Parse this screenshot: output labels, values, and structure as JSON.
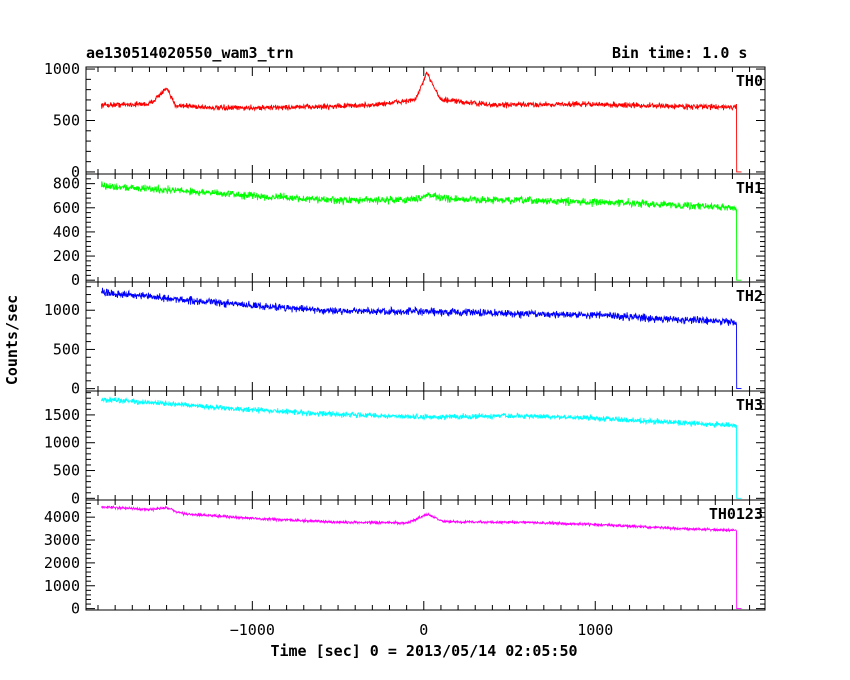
{
  "header": {
    "left": "ae130514020550_wam3_trn",
    "right": "Bin time: 1.0 s"
  },
  "chart_data": {
    "type": "line",
    "title": "ae130514020550_wam3_trn",
    "subtitle": "Bin time: 1.0 s",
    "xlabel": "Time [sec] 0 = 2013/05/14 02:05:50",
    "ylabel": "Counts/sec",
    "xlim": [
      -1970,
      1990
    ],
    "x_ticks": [
      -1000,
      0,
      1000
    ],
    "x_tick_labels": [
      "−1000",
      "0",
      "1000"
    ],
    "panels": [
      {
        "name": "TH0",
        "color": "#ff0000",
        "ylim": [
          -20,
          1020
        ],
        "y_ticks": [
          0,
          500,
          1000
        ],
        "y_tick_labels": [
          "0",
          "500",
          "1000"
        ],
        "noise": 22,
        "trend": [
          [
            -1880,
            650
          ],
          [
            -1600,
            660
          ],
          [
            -1500,
            810
          ],
          [
            -1450,
            650
          ],
          [
            -1200,
            620
          ],
          [
            -700,
            630
          ],
          [
            -300,
            650
          ],
          [
            -50,
            700
          ],
          [
            20,
            960
          ],
          [
            100,
            700
          ],
          [
            400,
            650
          ],
          [
            900,
            660
          ],
          [
            1400,
            640
          ],
          [
            1820,
            630
          ]
        ],
        "dropout_at": 1825
      },
      {
        "name": "TH1",
        "color": "#00ff00",
        "ylim": [
          -15,
          880
        ],
        "y_ticks": [
          0,
          200,
          400,
          600,
          800
        ],
        "y_tick_labels": [
          "0",
          "200",
          "400",
          "600",
          "800"
        ],
        "noise": 25,
        "trend": [
          [
            -1880,
            780
          ],
          [
            -1500,
            750
          ],
          [
            -1000,
            700
          ],
          [
            -500,
            660
          ],
          [
            -50,
            670
          ],
          [
            20,
            710
          ],
          [
            150,
            670
          ],
          [
            600,
            660
          ],
          [
            1200,
            640
          ],
          [
            1820,
            600
          ]
        ],
        "dropout_at": 1825
      },
      {
        "name": "TH2",
        "color": "#0000ff",
        "ylim": [
          -30,
          1360
        ],
        "y_ticks": [
          0,
          500,
          1000
        ],
        "y_tick_labels": [
          "0",
          "500",
          "1000"
        ],
        "noise": 40,
        "trend": [
          [
            -1880,
            1230
          ],
          [
            -1500,
            1150
          ],
          [
            -1000,
            1060
          ],
          [
            -500,
            990
          ],
          [
            0,
            980
          ],
          [
            500,
            960
          ],
          [
            1000,
            940
          ],
          [
            1500,
            880
          ],
          [
            1820,
            850
          ]
        ],
        "dropout_at": 1825
      },
      {
        "name": "TH3",
        "color": "#00ffff",
        "ylim": [
          -30,
          1930
        ],
        "y_ticks": [
          0,
          500,
          1000,
          1500
        ],
        "y_tick_labels": [
          "0",
          "500",
          "1000",
          "1500"
        ],
        "noise": 40,
        "trend": [
          [
            -1880,
            1780
          ],
          [
            -1500,
            1700
          ],
          [
            -1000,
            1590
          ],
          [
            -500,
            1510
          ],
          [
            0,
            1460
          ],
          [
            500,
            1480
          ],
          [
            900,
            1460
          ],
          [
            1300,
            1390
          ],
          [
            1820,
            1310
          ]
        ],
        "dropout_at": 1825
      },
      {
        "name": "TH0123",
        "color": "#ff00ff",
        "ylim": [
          -60,
          4750
        ],
        "y_ticks": [
          0,
          1000,
          2000,
          3000,
          4000
        ],
        "y_tick_labels": [
          "0",
          "1000",
          "2000",
          "3000",
          "4000"
        ],
        "noise": 50,
        "trend": [
          [
            -1880,
            4450
          ],
          [
            -1600,
            4330
          ],
          [
            -1500,
            4400
          ],
          [
            -1400,
            4150
          ],
          [
            -1000,
            3950
          ],
          [
            -500,
            3780
          ],
          [
            -100,
            3740
          ],
          [
            20,
            4120
          ],
          [
            120,
            3800
          ],
          [
            600,
            3770
          ],
          [
            1000,
            3680
          ],
          [
            1500,
            3500
          ],
          [
            1820,
            3420
          ]
        ],
        "dropout_at": 1825
      }
    ]
  }
}
